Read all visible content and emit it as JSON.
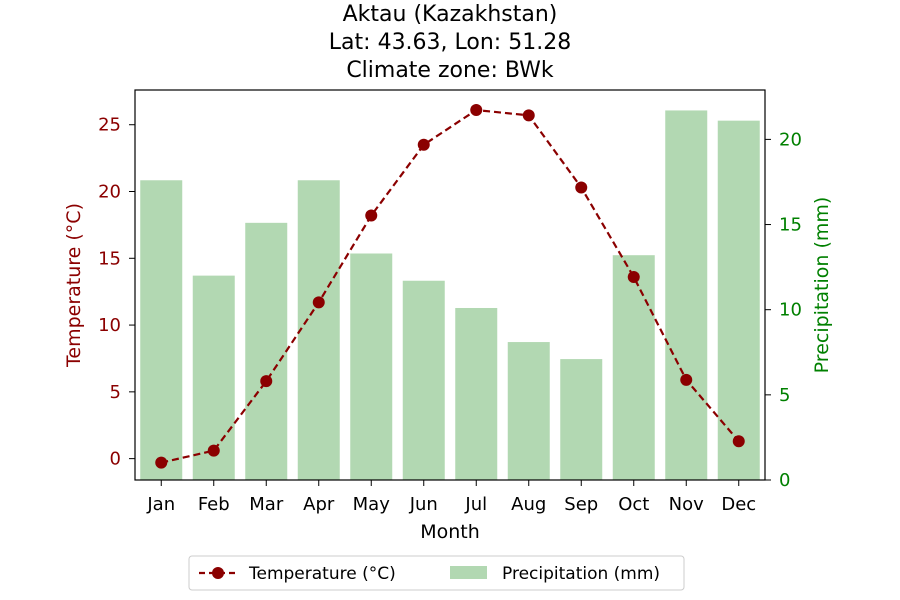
{
  "chart_data": {
    "type": "bar+line",
    "title_lines": [
      "Aktau (Kazakhstan)",
      "Lat: 43.63, Lon: 51.28",
      "Climate zone: BWk"
    ],
    "xlabel": "Month",
    "ylabel_left": "Temperature (°C)",
    "ylabel_right": "Precipitation (mm)",
    "categories": [
      "Jan",
      "Feb",
      "Mar",
      "Apr",
      "May",
      "Jun",
      "Jul",
      "Aug",
      "Sep",
      "Oct",
      "Nov",
      "Dec"
    ],
    "series": [
      {
        "name": "Temperature (°C)",
        "kind": "line",
        "axis": "left",
        "color": "#8b0000",
        "style": "dashed-with-markers",
        "values": [
          -0.3,
          0.6,
          5.8,
          11.7,
          18.2,
          23.5,
          26.1,
          25.7,
          20.3,
          13.6,
          5.9,
          1.3
        ]
      },
      {
        "name": "Precipitation (mm)",
        "kind": "bar",
        "axis": "right",
        "color": "#b2d8b2",
        "values": [
          17.6,
          12.0,
          15.1,
          17.6,
          13.3,
          11.7,
          10.1,
          8.1,
          7.1,
          13.2,
          21.7,
          21.1
        ]
      }
    ],
    "ylim_left": [
      -1.6,
      27.6
    ],
    "yticks_left": [
      0,
      5,
      10,
      15,
      20,
      25
    ],
    "ylim_right": [
      0,
      22.9
    ],
    "yticks_right": [
      0,
      5,
      10,
      15,
      20
    ],
    "left_axis_color": "#8b0000",
    "right_axis_color": "#008000",
    "legend_placement": "bottom-center",
    "grid": false
  }
}
